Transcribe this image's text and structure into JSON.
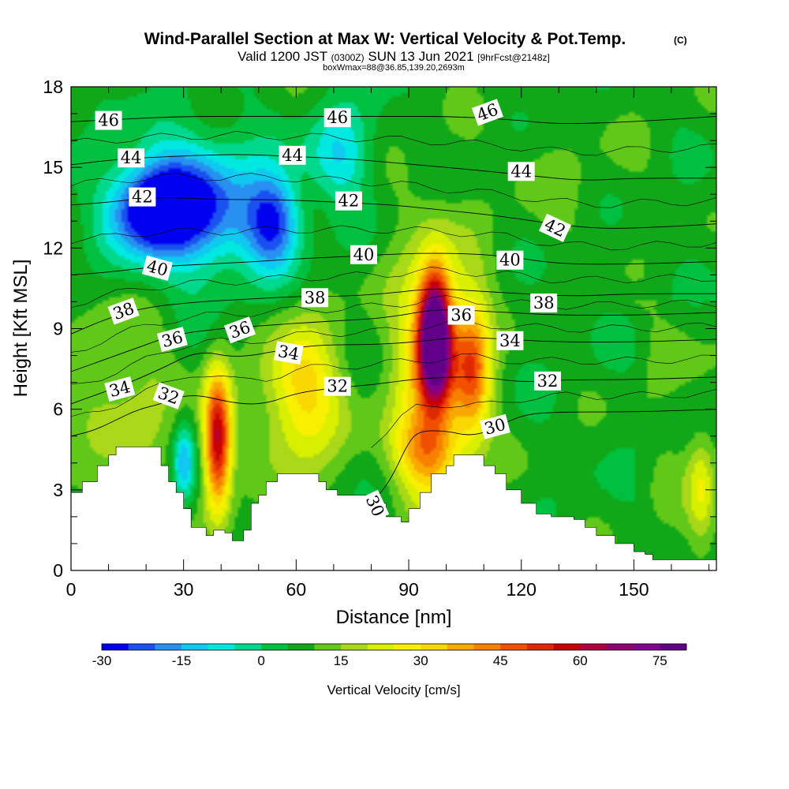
{
  "title": {
    "main": "Wind-Parallel Section at Max W: Vertical Velocity & Pot.Temp.",
    "main_mark": "(C)",
    "line2_a": "Valid 1200 JST",
    "line2_b": "(0300Z)",
    "line2_c": "SUN 13 Jun 2021",
    "line2_d": "[9hrFcst@2148z]",
    "line3": "boxWmax=88@36.85,139.20,2693m"
  },
  "colors": {
    "palette": [
      "#0000f0",
      "#1a50f0",
      "#2890f0",
      "#10c8f0",
      "#00e8e0",
      "#00d88c",
      "#00c040",
      "#10a818",
      "#60c818",
      "#a8d818",
      "#d8f000",
      "#f8f000",
      "#f8d800",
      "#f8a800",
      "#f88000",
      "#f05000",
      "#e02800",
      "#c80000",
      "#b00040",
      "#900070",
      "#800090",
      "#600088"
    ],
    "terrain": "#ffffff",
    "contour": "#000000"
  },
  "chart_data": {
    "type": "heatmap",
    "xlabel": "Distance [nm]",
    "ylabel": "Height [Kft MSL]",
    "xlim": [
      0,
      172
    ],
    "ylim": [
      0,
      18
    ],
    "x_ticks": [
      0,
      30,
      60,
      90,
      120,
      150
    ],
    "y_ticks": [
      0,
      3,
      6,
      9,
      12,
      15,
      18
    ],
    "colorbar": {
      "label": "Vertical Velocity [cm/s]",
      "min": -30,
      "max": 80,
      "step": 5,
      "tick_values": [
        -30,
        -15,
        0,
        15,
        30,
        45,
        60,
        75
      ]
    },
    "terrain_height_kft": [
      [
        0,
        2.9
      ],
      [
        3,
        3.3
      ],
      [
        7,
        3.9
      ],
      [
        10,
        4.3
      ],
      [
        12,
        4.6
      ],
      [
        22,
        4.6
      ],
      [
        24,
        3.9
      ],
      [
        26,
        3.3
      ],
      [
        28,
        2.9
      ],
      [
        30,
        2.3
      ],
      [
        32,
        1.6
      ],
      [
        36,
        1.3
      ],
      [
        38,
        1.5
      ],
      [
        41,
        1.4
      ],
      [
        43,
        1.1
      ],
      [
        46,
        1.5
      ],
      [
        48,
        2.5
      ],
      [
        50,
        2.8
      ],
      [
        52,
        3.3
      ],
      [
        55,
        3.6
      ],
      [
        63,
        3.6
      ],
      [
        66,
        3.3
      ],
      [
        68,
        3.0
      ],
      [
        71,
        2.8
      ],
      [
        76,
        2.8
      ],
      [
        80,
        2.5
      ],
      [
        84,
        2.0
      ],
      [
        88,
        1.8
      ],
      [
        90,
        2.3
      ],
      [
        93,
        2.9
      ],
      [
        96,
        3.6
      ],
      [
        100,
        3.9
      ],
      [
        102,
        4.3
      ],
      [
        108,
        4.3
      ],
      [
        110,
        3.9
      ],
      [
        113,
        3.6
      ],
      [
        116,
        3.0
      ],
      [
        120,
        2.5
      ],
      [
        124,
        2.1
      ],
      [
        128,
        2.0
      ],
      [
        134,
        1.9
      ],
      [
        137,
        1.6
      ],
      [
        140,
        1.3
      ],
      [
        145,
        1.0
      ],
      [
        150,
        0.7
      ],
      [
        153,
        0.6
      ],
      [
        155,
        0.4
      ],
      [
        170,
        0.4
      ],
      [
        172,
        0.6
      ]
    ],
    "vertical_velocity_features": [
      {
        "x": 39,
        "y": 4.8,
        "peak": 62,
        "width_nm": 2.6,
        "height_kft": 1.8
      },
      {
        "x": 97,
        "y": 8.7,
        "peak": 88,
        "width_nm": 3.0,
        "height_kft": 1.6
      },
      {
        "x": 96,
        "y": 7.5,
        "peak": 30,
        "width_nm": 8.0,
        "height_kft": 3.5
      },
      {
        "x": 107,
        "y": 7.6,
        "peak": 40,
        "width_nm": 3.5,
        "height_kft": 1.8
      },
      {
        "x": 62,
        "y": 6.5,
        "peak": 32,
        "width_nm": 7.0,
        "height_kft": 1.9
      },
      {
        "x": 57,
        "y": 6.8,
        "peak": 10,
        "width_nm": 6.0,
        "height_kft": 1.6
      },
      {
        "x": 14,
        "y": 6.5,
        "peak": 18,
        "width_nm": 10.0,
        "height_kft": 2.2
      },
      {
        "x": 95,
        "y": 4.5,
        "peak": 30,
        "width_nm": 6.0,
        "height_kft": 1.0
      },
      {
        "x": 30,
        "y": 4.0,
        "peak": -14,
        "width_nm": 2.0,
        "height_kft": 1.0
      },
      {
        "x": 22,
        "y": 13.5,
        "peak": -30,
        "width_nm": 8.0,
        "height_kft": 1.2
      },
      {
        "x": 35,
        "y": 13.5,
        "peak": -20,
        "width_nm": 12.0,
        "height_kft": 1.8
      },
      {
        "x": 54,
        "y": 13.0,
        "peak": -22,
        "width_nm": 5.0,
        "height_kft": 1.2
      },
      {
        "x": 72,
        "y": 15.5,
        "peak": -10,
        "width_nm": 6.0,
        "height_kft": 1.2
      },
      {
        "x": 131,
        "y": 14.5,
        "peak": 10,
        "width_nm": 15.0,
        "height_kft": 2.2
      },
      {
        "x": 168,
        "y": 3.0,
        "peak": 22,
        "width_nm": 2.5,
        "height_kft": 1.5
      }
    ],
    "theta_isentropes": [
      {
        "value": 30,
        "points": [
          [
            80,
            2.5
          ],
          [
            85,
            3.3
          ],
          [
            90,
            4.8
          ],
          [
            93,
            5.2
          ],
          [
            100,
            5.2
          ],
          [
            106,
            5.0
          ],
          [
            112,
            5.2
          ],
          [
            120,
            5.8
          ],
          [
            130,
            5.9
          ],
          [
            150,
            5.9
          ],
          [
            172,
            6.0
          ]
        ]
      },
      {
        "value": 32,
        "points": [
          [
            0,
            5.0
          ],
          [
            6,
            5.2
          ],
          [
            12,
            5.6
          ],
          [
            18,
            6.0
          ],
          [
            24,
            6.2
          ],
          [
            32,
            6.6
          ],
          [
            44,
            6.2
          ],
          [
            52,
            6.2
          ],
          [
            60,
            6.6
          ],
          [
            70,
            6.8
          ],
          [
            80,
            6.9
          ],
          [
            90,
            7.1
          ],
          [
            100,
            7.2
          ],
          [
            110,
            7.2
          ],
          [
            120,
            7.0
          ],
          [
            132,
            7.1
          ],
          [
            150,
            7.1
          ],
          [
            172,
            7.2
          ]
        ]
      },
      {
        "value": 34,
        "points": [
          [
            0,
            6.2
          ],
          [
            8,
            6.6
          ],
          [
            14,
            6.9
          ],
          [
            24,
            7.5
          ],
          [
            34,
            8.2
          ],
          [
            44,
            7.9
          ],
          [
            56,
            8.2
          ],
          [
            66,
            8.4
          ],
          [
            80,
            8.4
          ],
          [
            92,
            8.5
          ],
          [
            104,
            8.7
          ],
          [
            116,
            8.6
          ],
          [
            130,
            8.5
          ],
          [
            150,
            8.5
          ],
          [
            172,
            8.6
          ]
        ]
      },
      {
        "value": 36,
        "points": [
          [
            0,
            7.4
          ],
          [
            10,
            7.9
          ],
          [
            20,
            8.4
          ],
          [
            28,
            8.8
          ],
          [
            40,
            9.0
          ],
          [
            50,
            9.1
          ],
          [
            60,
            9.2
          ],
          [
            72,
            9.3
          ],
          [
            84,
            9.4
          ],
          [
            96,
            9.7
          ],
          [
            104,
            9.7
          ],
          [
            116,
            9.6
          ],
          [
            130,
            9.5
          ],
          [
            150,
            9.5
          ],
          [
            172,
            9.6
          ]
        ]
      },
      {
        "value": 38,
        "points": [
          [
            0,
            8.8
          ],
          [
            10,
            9.4
          ],
          [
            20,
            9.8
          ],
          [
            34,
            10.0
          ],
          [
            48,
            10.1
          ],
          [
            60,
            10.2
          ],
          [
            72,
            10.2
          ],
          [
            84,
            10.3
          ],
          [
            96,
            10.5
          ],
          [
            108,
            10.4
          ],
          [
            120,
            10.3
          ],
          [
            134,
            10.2
          ],
          [
            150,
            10.3
          ],
          [
            172,
            10.3
          ]
        ]
      },
      {
        "value": 40,
        "points": [
          [
            0,
            11.0
          ],
          [
            10,
            11.1
          ],
          [
            22,
            11.3
          ],
          [
            36,
            11.4
          ],
          [
            50,
            11.5
          ],
          [
            60,
            11.6
          ],
          [
            76,
            11.7
          ],
          [
            90,
            11.8
          ],
          [
            104,
            11.8
          ],
          [
            116,
            11.7
          ],
          [
            130,
            11.4
          ],
          [
            150,
            11.4
          ],
          [
            172,
            11.5
          ]
        ]
      },
      {
        "value": 42,
        "points": [
          [
            0,
            13.6
          ],
          [
            10,
            13.7
          ],
          [
            22,
            13.9
          ],
          [
            40,
            13.8
          ],
          [
            56,
            13.8
          ],
          [
            72,
            13.7
          ],
          [
            86,
            13.6
          ],
          [
            100,
            13.4
          ],
          [
            114,
            13.2
          ],
          [
            128,
            12.9
          ],
          [
            142,
            12.7
          ],
          [
            160,
            12.8
          ],
          [
            172,
            12.9
          ]
        ]
      },
      {
        "value": 44,
        "points": [
          [
            0,
            15.1
          ],
          [
            12,
            15.3
          ],
          [
            26,
            15.4
          ],
          [
            44,
            15.5
          ],
          [
            60,
            15.4
          ],
          [
            76,
            15.3
          ],
          [
            92,
            15.1
          ],
          [
            108,
            14.9
          ],
          [
            122,
            14.7
          ],
          [
            136,
            14.5
          ],
          [
            150,
            14.6
          ],
          [
            172,
            14.6
          ]
        ]
      },
      {
        "value": 46,
        "points": [
          [
            0,
            16.7
          ],
          [
            14,
            16.8
          ],
          [
            30,
            16.9
          ],
          [
            50,
            16.9
          ],
          [
            70,
            16.9
          ],
          [
            86,
            16.9
          ],
          [
            100,
            16.9
          ],
          [
            116,
            16.8
          ],
          [
            130,
            16.6
          ],
          [
            150,
            16.7
          ],
          [
            172,
            16.9
          ]
        ]
      }
    ],
    "isentrope_labels": [
      {
        "text": "46",
        "x": 10,
        "y": 16.75,
        "angle": 0
      },
      {
        "text": "46",
        "x": 71,
        "y": 16.85,
        "angle": 0
      },
      {
        "text": "46",
        "x": 111,
        "y": 17.05,
        "angle": -20
      },
      {
        "text": "44",
        "x": 16,
        "y": 15.35,
        "angle": 0
      },
      {
        "text": "44",
        "x": 59,
        "y": 15.45,
        "angle": 0
      },
      {
        "text": "44",
        "x": 120,
        "y": 14.85,
        "angle": 0
      },
      {
        "text": "42",
        "x": 19,
        "y": 13.9,
        "angle": 0
      },
      {
        "text": "42",
        "x": 74,
        "y": 13.75,
        "angle": 0
      },
      {
        "text": "42",
        "x": 129,
        "y": 12.75,
        "angle": 25
      },
      {
        "text": "40",
        "x": 23,
        "y": 11.25,
        "angle": 15
      },
      {
        "text": "40",
        "x": 78,
        "y": 11.75,
        "angle": 0
      },
      {
        "text": "40",
        "x": 117,
        "y": 11.55,
        "angle": 0
      },
      {
        "text": "38",
        "x": 14,
        "y": 9.65,
        "angle": -20
      },
      {
        "text": "38",
        "x": 65,
        "y": 10.15,
        "angle": 0
      },
      {
        "text": "38",
        "x": 126,
        "y": 9.95,
        "angle": 0
      },
      {
        "text": "36",
        "x": 27,
        "y": 8.6,
        "angle": -15
      },
      {
        "text": "36",
        "x": 45,
        "y": 8.95,
        "angle": -20
      },
      {
        "text": "36",
        "x": 104,
        "y": 9.5,
        "angle": 0
      },
      {
        "text": "34",
        "x": 13,
        "y": 6.75,
        "angle": -15
      },
      {
        "text": "34",
        "x": 58,
        "y": 8.1,
        "angle": 10
      },
      {
        "text": "34",
        "x": 117,
        "y": 8.55,
        "angle": 0
      },
      {
        "text": "32",
        "x": 26,
        "y": 6.5,
        "angle": 20
      },
      {
        "text": "32",
        "x": 71,
        "y": 6.85,
        "angle": 0
      },
      {
        "text": "32",
        "x": 127,
        "y": 7.05,
        "angle": 0
      },
      {
        "text": "30",
        "x": 113,
        "y": 5.35,
        "angle": -15
      },
      {
        "text": "30",
        "x": 81,
        "y": 2.4,
        "angle": 65
      }
    ]
  }
}
